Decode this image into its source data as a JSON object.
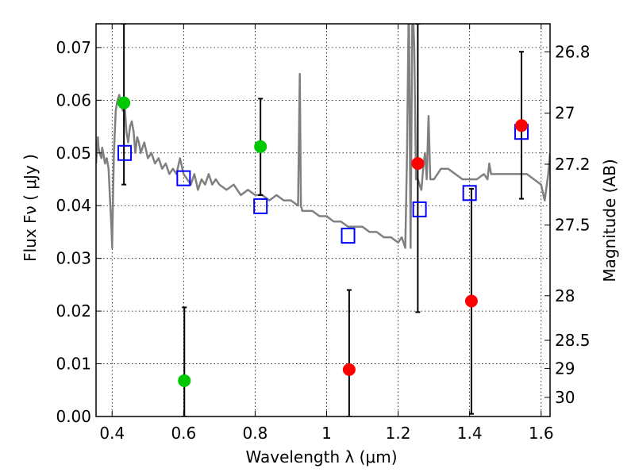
{
  "chart_data": {
    "type": "scatter",
    "xlabel": "Wavelength  λ (μm)",
    "ylabel": "Flux  Fν  ( μJy )",
    "y2label": "Magnitude (AB)",
    "xlim": [
      0.355,
      1.625
    ],
    "ylim": [
      0.0,
      0.0745
    ],
    "grid": true,
    "x_ticks": [
      {
        "value": 0.4,
        "label": "0.4"
      },
      {
        "value": 0.6,
        "label": "0.6"
      },
      {
        "value": 0.8,
        "label": "0.8"
      },
      {
        "value": 1.0,
        "label": "1"
      },
      {
        "value": 1.2,
        "label": "1.2"
      },
      {
        "value": 1.4,
        "label": "1.4"
      },
      {
        "value": 1.6,
        "label": "1.6"
      }
    ],
    "y_ticks": [
      {
        "value": 0.0,
        "label": "0.00"
      },
      {
        "value": 0.01,
        "label": "0.01"
      },
      {
        "value": 0.02,
        "label": "0.02"
      },
      {
        "value": 0.03,
        "label": "0.03"
      },
      {
        "value": 0.04,
        "label": "0.04"
      },
      {
        "value": 0.05,
        "label": "0.05"
      },
      {
        "value": 0.06,
        "label": "0.06"
      },
      {
        "value": 0.07,
        "label": "0.07"
      }
    ],
    "y2_ticks": [
      {
        "mag": 26.8,
        "label": "26.8"
      },
      {
        "mag": 27,
        "label": "27"
      },
      {
        "mag": 27.2,
        "label": "27.2"
      },
      {
        "mag": 27.5,
        "label": "27.5"
      },
      {
        "mag": 28,
        "label": "28"
      },
      {
        "mag": 28.5,
        "label": "28.5"
      },
      {
        "mag": 29,
        "label": "29"
      },
      {
        "mag": 30,
        "label": "30"
      }
    ],
    "series": [
      {
        "kind": "model-spectrum",
        "color": "#808080",
        "x": [
          0.355,
          0.36,
          0.362,
          0.365,
          0.37,
          0.372,
          0.375,
          0.38,
          0.385,
          0.39,
          0.395,
          0.398,
          0.4,
          0.402,
          0.405,
          0.41,
          0.415,
          0.42,
          0.425,
          0.43,
          0.435,
          0.44,
          0.445,
          0.45,
          0.455,
          0.46,
          0.465,
          0.47,
          0.475,
          0.48,
          0.49,
          0.5,
          0.51,
          0.52,
          0.53,
          0.54,
          0.55,
          0.56,
          0.57,
          0.58,
          0.59,
          0.6,
          0.61,
          0.62,
          0.63,
          0.64,
          0.65,
          0.66,
          0.67,
          0.68,
          0.69,
          0.7,
          0.72,
          0.74,
          0.76,
          0.78,
          0.8,
          0.82,
          0.84,
          0.86,
          0.88,
          0.9,
          0.92,
          0.925,
          0.928,
          0.932,
          0.94,
          0.96,
          0.98,
          1.0,
          1.02,
          1.04,
          1.06,
          1.08,
          1.1,
          1.12,
          1.14,
          1.16,
          1.18,
          1.2,
          1.21,
          1.22,
          1.225,
          1.23,
          1.232,
          1.235,
          1.24,
          1.245,
          1.25,
          1.255,
          1.26,
          1.265,
          1.27,
          1.275,
          1.28,
          1.285,
          1.29,
          1.3,
          1.31,
          1.32,
          1.34,
          1.36,
          1.38,
          1.4,
          1.42,
          1.44,
          1.45,
          1.455,
          1.46,
          1.48,
          1.5,
          1.52,
          1.54,
          1.56,
          1.58,
          1.6,
          1.61,
          1.62,
          1.625
        ],
        "y": [
          0.048,
          0.053,
          0.051,
          0.05,
          0.049,
          0.051,
          0.05,
          0.048,
          0.049,
          0.047,
          0.04,
          0.036,
          0.032,
          0.04,
          0.05,
          0.058,
          0.06,
          0.061,
          0.059,
          0.058,
          0.059,
          0.054,
          0.052,
          0.055,
          0.056,
          0.054,
          0.05,
          0.053,
          0.052,
          0.05,
          0.052,
          0.049,
          0.05,
          0.048,
          0.049,
          0.047,
          0.048,
          0.046,
          0.047,
          0.046,
          0.049,
          0.046,
          0.045,
          0.044,
          0.046,
          0.043,
          0.045,
          0.044,
          0.046,
          0.044,
          0.045,
          0.044,
          0.043,
          0.044,
          0.042,
          0.043,
          0.042,
          0.042,
          0.041,
          0.042,
          0.041,
          0.041,
          0.04,
          0.065,
          0.04,
          0.039,
          0.039,
          0.039,
          0.038,
          0.038,
          0.037,
          0.037,
          0.036,
          0.036,
          0.036,
          0.035,
          0.035,
          0.034,
          0.034,
          0.033,
          0.034,
          0.032,
          0.05,
          0.08,
          0.06,
          0.032,
          0.08,
          0.07,
          0.045,
          0.045,
          0.044,
          0.043,
          0.047,
          0.05,
          0.045,
          0.057,
          0.045,
          0.045,
          0.046,
          0.047,
          0.047,
          0.046,
          0.045,
          0.045,
          0.045,
          0.046,
          0.045,
          0.048,
          0.046,
          0.046,
          0.046,
          0.046,
          0.046,
          0.046,
          0.045,
          0.044,
          0.041,
          0.046,
          0.05
        ]
      },
      {
        "kind": "model-photometry",
        "marker": "open-square",
        "color": "#0000ff",
        "x": [
          0.435,
          0.6,
          0.815,
          1.06,
          1.26,
          1.4,
          1.545
        ],
        "y": [
          0.05,
          0.0452,
          0.0399,
          0.0343,
          0.0393,
          0.0424,
          0.054
        ]
      },
      {
        "kind": "detection",
        "marker": "filled-circle",
        "color": "#00c800",
        "x": [
          0.433,
          0.602,
          0.815
        ],
        "y": [
          0.0595,
          0.0068,
          0.0512
        ],
        "yerr_low": [
          0.044,
          0.0,
          0.042
        ],
        "yerr_high": [
          0.0745,
          0.0207,
          0.0603
        ]
      },
      {
        "kind": "upper-limit",
        "marker": "filled-circle",
        "color": "#ff0000",
        "x": [
          1.063,
          1.255,
          1.405,
          1.545
        ],
        "y": [
          0.0089,
          0.048,
          0.0219,
          0.0552
        ],
        "yerr_low": [
          0.0,
          0.0198,
          0.0005,
          0.0413
        ],
        "yerr_high": [
          0.024,
          0.0745,
          0.0432,
          0.0692
        ]
      }
    ]
  }
}
